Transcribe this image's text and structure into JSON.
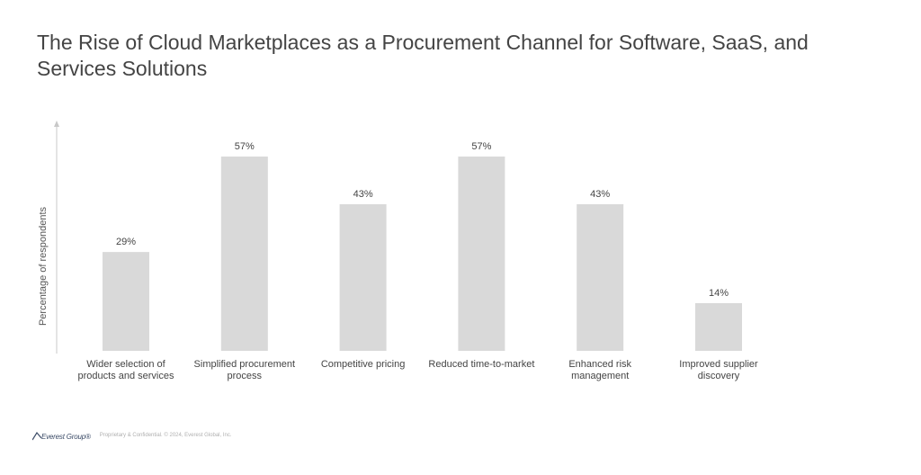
{
  "chart_data": {
    "type": "bar",
    "title": "The Rise of Cloud Marketplaces as a Procurement Channel for Software, SaaS, and Services Solutions",
    "ylabel": "Percentage of respondents",
    "xlabel": "",
    "categories": [
      [
        "Wider selection of",
        "products and services"
      ],
      [
        "Simplified procurement",
        "process"
      ],
      [
        "Competitive pricing"
      ],
      [
        "Reduced time-to-market"
      ],
      [
        "Enhanced risk",
        "management"
      ],
      [
        "Improved supplier",
        "discovery"
      ]
    ],
    "values": [
      29,
      57,
      43,
      57,
      43,
      14
    ],
    "data_labels": [
      "29%",
      "57%",
      "43%",
      "57%",
      "43%",
      "14%"
    ],
    "ylim": [
      0,
      57
    ],
    "bar_color": "#d9d9d9",
    "grid": false
  },
  "footer": {
    "logo_text": "Everest Group®",
    "note": "Proprietary & Confidential. © 2024, Everest Global, Inc."
  }
}
